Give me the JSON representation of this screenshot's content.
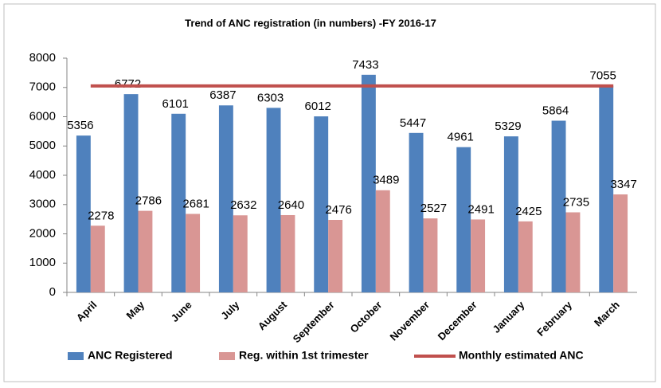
{
  "chart_data": {
    "type": "bar",
    "title": "Trend of ANC registration (in numbers) -FY 2016-17",
    "categories": [
      "April",
      "May",
      "June",
      "July",
      "August",
      "September",
      "October",
      "November",
      "December",
      "January",
      "February",
      "March"
    ],
    "series": [
      {
        "name": "ANC Registered",
        "color": "#4f81bd",
        "values": [
          5356,
          6772,
          6101,
          6387,
          6303,
          6012,
          7433,
          5447,
          4961,
          5329,
          5864,
          7055
        ]
      },
      {
        "name": "Reg. within 1st trimester",
        "color": "#d99694",
        "values": [
          2278,
          2786,
          2681,
          2632,
          2640,
          2476,
          3489,
          2527,
          2491,
          2425,
          2735,
          3347
        ]
      },
      {
        "name": "Monthly estimated ANC",
        "color": "#c0504d",
        "type": "line",
        "values": [
          7050,
          7050,
          7050,
          7050,
          7050,
          7050,
          7050,
          7050,
          7050,
          7050,
          7050,
          7050
        ]
      }
    ],
    "ylim": [
      0,
      8000
    ],
    "yticks": [
      0,
      1000,
      2000,
      3000,
      4000,
      5000,
      6000,
      7000,
      8000
    ],
    "grid": false,
    "legend": "bottom"
  }
}
